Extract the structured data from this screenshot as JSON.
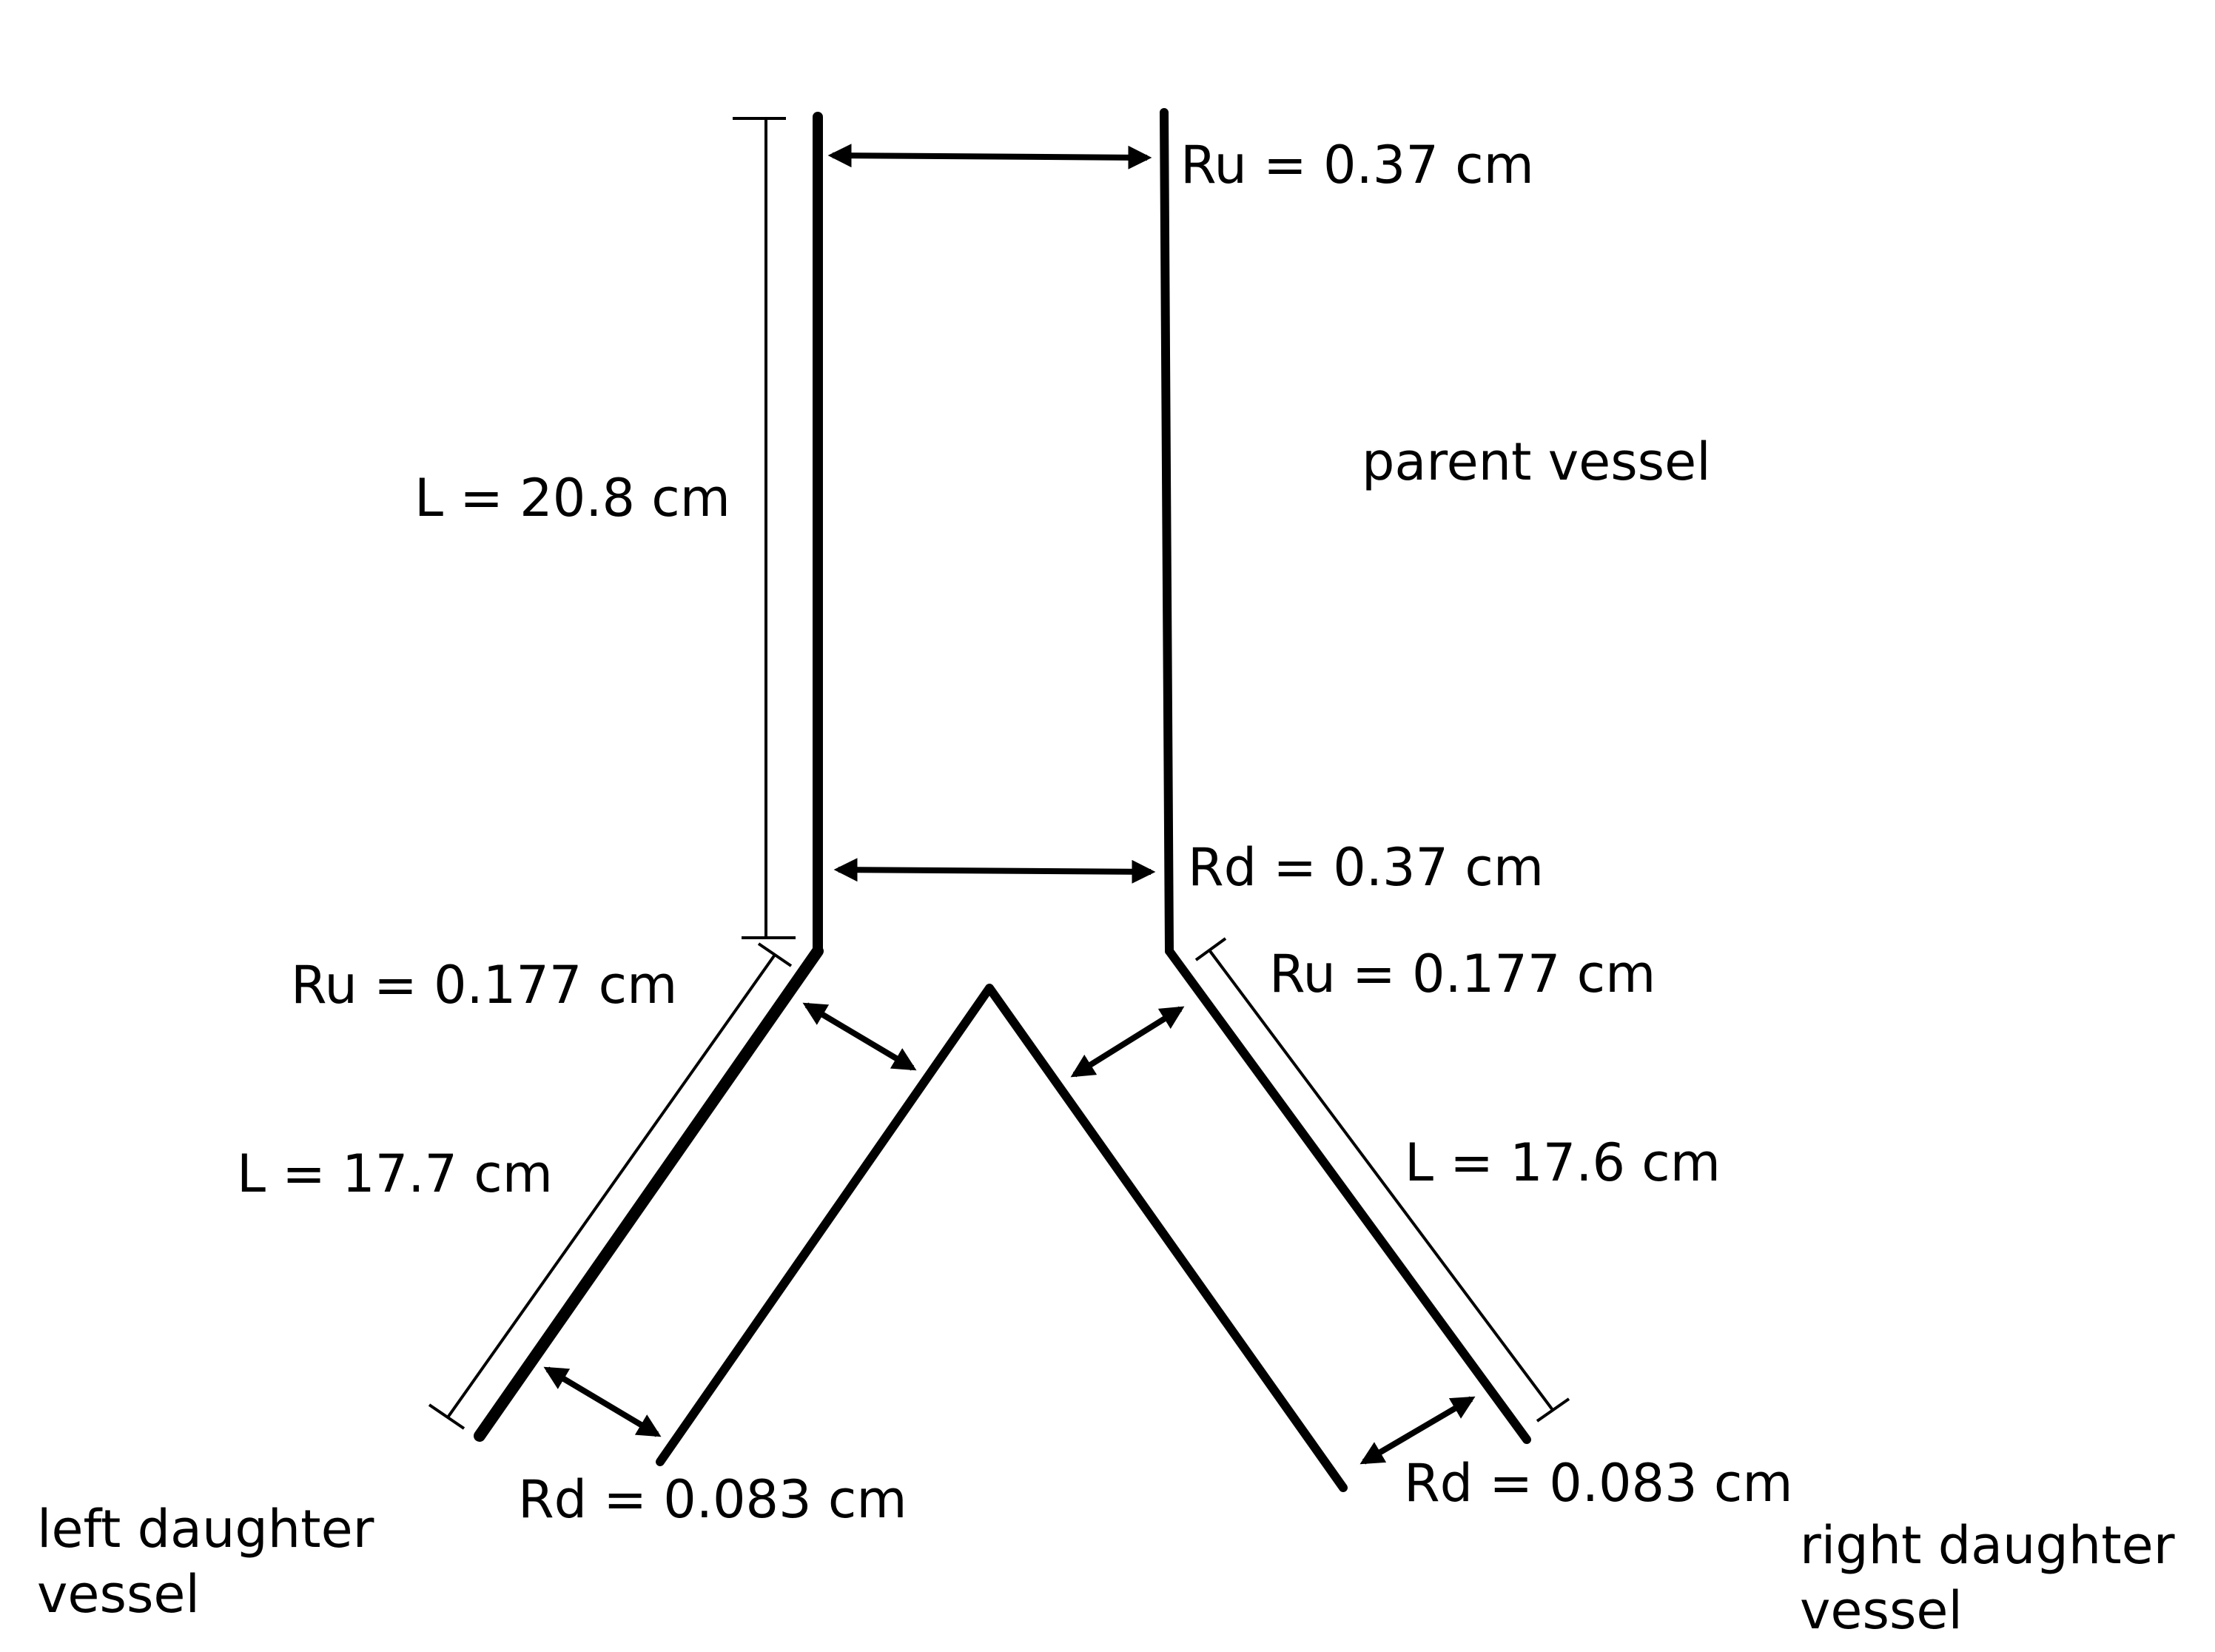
{
  "labels": {
    "parent_ru": "Ru = 0.37 cm",
    "parent_length": "L = 20.8 cm",
    "parent_name": "parent vessel",
    "parent_rd": "Rd = 0.37 cm",
    "left_ru": "Ru = 0.177 cm",
    "left_length": "L = 17.7 cm",
    "left_rd": "Rd = 0.083 cm",
    "left_name_line1": "left daughter",
    "left_name_line2": "vessel",
    "right_ru": "Ru = 0.177 cm",
    "right_length": "L = 17.6 cm",
    "right_rd": "Rd = 0.083 cm",
    "right_name_line1": "right daughter",
    "right_name_line2": "vessel"
  }
}
